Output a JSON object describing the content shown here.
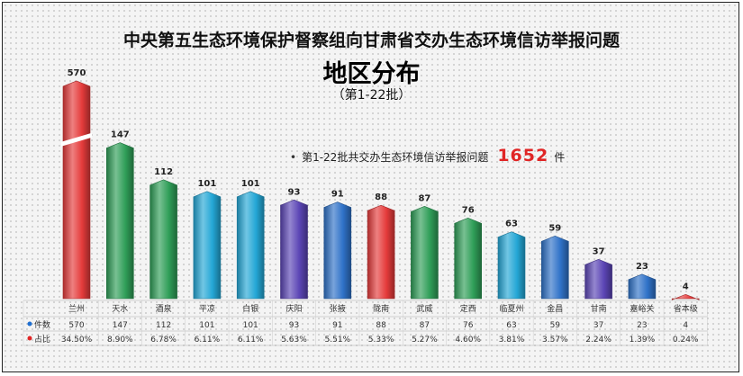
{
  "title_line1": "中央第五生态环境保护督察组向甘肃省交办生态环境信访举报问题",
  "title_line2": "地区分布",
  "title_line3": "（第1-22批）",
  "note": {
    "bullet": "•",
    "text": "第1-22批共交办生态环境信访举报问题",
    "total": "1652",
    "unit": "件"
  },
  "table": {
    "row1_label": "件数",
    "row2_label": "占比"
  },
  "colors": {
    "red": "#e53b3b",
    "green": "#2f9e58",
    "cyan": "#24a7d6",
    "purple": "#5b45b5",
    "blue": "#2f72c8"
  },
  "chart_data": {
    "type": "bar",
    "title": "中央第五生态环境保护督察组向甘肃省交办生态环境信访举报问题",
    "subtitle": "地区分布（第1-22批）",
    "categories": [
      "兰州",
      "天水",
      "酒泉",
      "平凉",
      "白银",
      "庆阳",
      "张掖",
      "陇南",
      "武威",
      "定西",
      "临夏州",
      "金昌",
      "甘南",
      "嘉峪关",
      "省本级"
    ],
    "values": [
      570,
      147,
      112,
      101,
      101,
      93,
      91,
      88,
      87,
      76,
      63,
      59,
      37,
      23,
      4
    ],
    "shares": [
      "34.50%",
      "8.90%",
      "6.78%",
      "6.11%",
      "6.11%",
      "5.63%",
      "5.51%",
      "5.33%",
      "5.27%",
      "4.60%",
      "3.81%",
      "3.57%",
      "2.24%",
      "1.39%",
      "0.24%"
    ],
    "bar_colors": [
      "red",
      "green",
      "green",
      "cyan",
      "cyan",
      "purple",
      "blue",
      "red",
      "green",
      "green",
      "cyan",
      "blue",
      "purple",
      "blue",
      "red"
    ],
    "axis_break": true,
    "grid": false
  }
}
